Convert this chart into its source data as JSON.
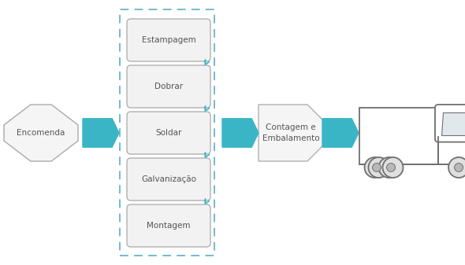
{
  "bg_color": "#ffffff",
  "teal": "#3ab5c6",
  "box_fill": "#f2f2f2",
  "box_edge": "#b0b0b0",
  "dashed_box_color": "#6ab4c8",
  "text_color": "#555555",
  "process_boxes": [
    "Estampagem",
    "Dobrar",
    "Soldar",
    "Galvanização",
    "Montagem"
  ],
  "encomenda_label": "Encomenda",
  "contagem_label": "Contagem e\nEmbalamento",
  "font_size": 7.5,
  "fig_width": 5.9,
  "fig_height": 3.37,
  "dpi": 100
}
